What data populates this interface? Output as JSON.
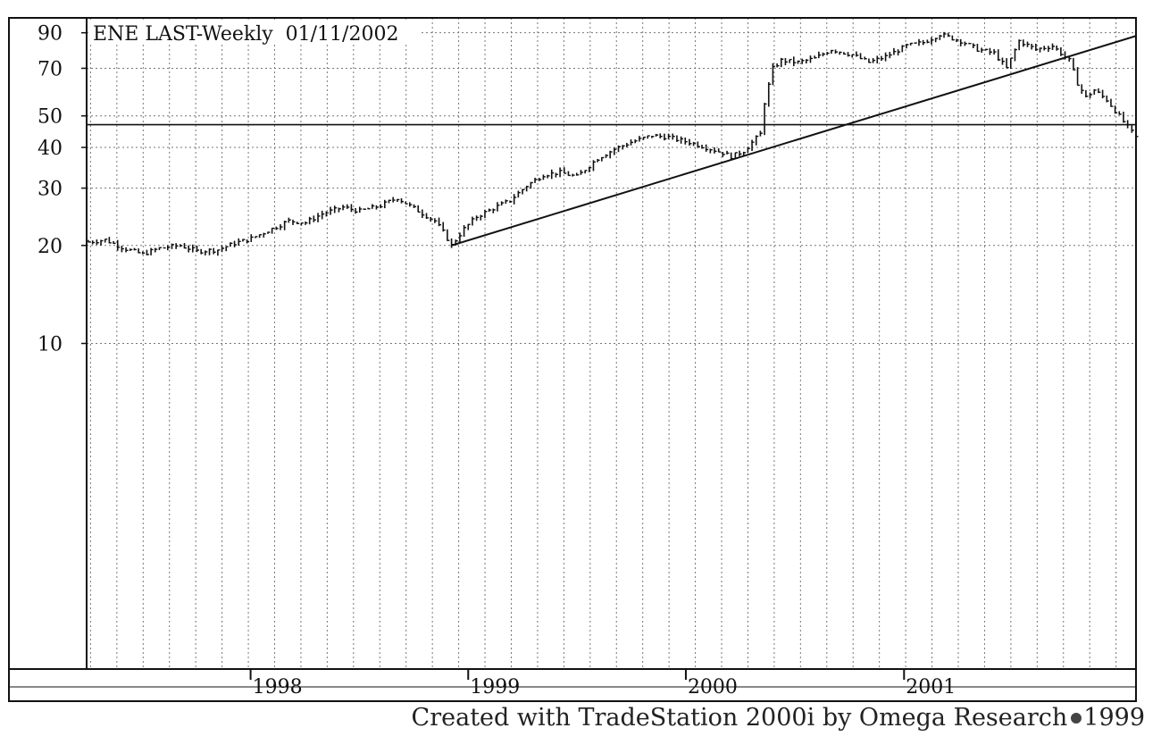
{
  "chart_data": {
    "type": "line",
    "style": "weekly OHLC bars",
    "title": "ENE LAST-Weekly  01/11/2002",
    "xlabel": "",
    "ylabel": "",
    "y_scale": "log",
    "ylim": [
      1,
      100
    ],
    "xlim": [
      "1997-04-01",
      "2002-01-25"
    ],
    "y_tick_labels": [
      "90",
      "70",
      "50",
      "40",
      "30",
      "20",
      "10"
    ],
    "y_ticks": [
      90,
      70,
      50,
      40,
      30,
      20,
      10
    ],
    "x_tick_labels": [
      "1998",
      "1999",
      "2000",
      "2001"
    ],
    "x_ticks": [
      "1998-01-01",
      "1999-01-01",
      "2000-01-01",
      "2001-01-01"
    ],
    "grid": true,
    "series": [
      {
        "style": "ohlc-weekly",
        "points": [
          [
            "1997-04-04",
            20.5
          ],
          [
            "1997-05-02",
            20.8
          ],
          [
            "1997-06-06",
            19.5
          ],
          [
            "1997-07-04",
            18.8
          ],
          [
            "1997-08-01",
            19.6
          ],
          [
            "1997-09-05",
            20.0
          ],
          [
            "1997-10-03",
            19.2
          ],
          [
            "1997-11-07",
            19.4
          ],
          [
            "1997-12-05",
            20.3
          ],
          [
            "1998-01-02",
            21.0
          ],
          [
            "1998-02-06",
            22.5
          ],
          [
            "1998-03-06",
            23.8
          ],
          [
            "1998-04-03",
            23.5
          ],
          [
            "1998-05-01",
            25.0
          ],
          [
            "1998-06-05",
            26.2
          ],
          [
            "1998-07-03",
            25.5
          ],
          [
            "1998-08-07",
            26.5
          ],
          [
            "1998-09-04",
            28.0
          ],
          [
            "1998-10-02",
            26.0
          ],
          [
            "1998-11-06",
            23.8
          ],
          [
            "1998-11-20",
            22.0
          ],
          [
            "1998-12-04",
            20.0
          ],
          [
            "1998-12-25",
            22.5
          ],
          [
            "1999-01-15",
            24.5
          ],
          [
            "1999-02-12",
            26.0
          ],
          [
            "1999-03-12",
            27.5
          ],
          [
            "1999-04-09",
            30.5
          ],
          [
            "1999-05-07",
            33.0
          ],
          [
            "1999-06-04",
            33.5
          ],
          [
            "1999-07-02",
            32.5
          ],
          [
            "1999-08-06",
            37.0
          ],
          [
            "1999-09-03",
            39.5
          ],
          [
            "1999-10-01",
            41.5
          ],
          [
            "1999-11-05",
            43.5
          ],
          [
            "1999-12-03",
            43.0
          ],
          [
            "1999-12-24",
            42.0
          ],
          [
            "2000-01-07",
            41.5
          ],
          [
            "2000-02-04",
            40.0
          ],
          [
            "2000-03-03",
            38.5
          ],
          [
            "2000-03-17",
            37.5
          ],
          [
            "2000-04-07",
            39.0
          ],
          [
            "2000-05-05",
            44.0
          ],
          [
            "2000-05-12",
            55.0
          ],
          [
            "2000-05-26",
            70.0
          ],
          [
            "2000-06-09",
            74.0
          ],
          [
            "2000-07-07",
            73.0
          ],
          [
            "2000-08-04",
            75.0
          ],
          [
            "2000-09-01",
            80.0
          ],
          [
            "2000-10-06",
            77.0
          ],
          [
            "2000-11-03",
            73.0
          ],
          [
            "2000-12-01",
            76.0
          ],
          [
            "2001-01-05",
            82.0
          ],
          [
            "2001-02-02",
            84.0
          ],
          [
            "2001-03-02",
            89.0
          ],
          [
            "2001-04-06",
            85.0
          ],
          [
            "2001-05-04",
            80.0
          ],
          [
            "2001-06-01",
            78.0
          ],
          [
            "2001-06-22",
            70.0
          ],
          [
            "2001-07-13",
            85.0
          ],
          [
            "2001-08-10",
            80.0
          ],
          [
            "2001-09-07",
            82.0
          ],
          [
            "2001-10-05",
            74.0
          ],
          [
            "2001-10-19",
            63.0
          ],
          [
            "2001-11-02",
            57.0
          ],
          [
            "2001-11-16",
            60.0
          ],
          [
            "2001-12-07",
            56.0
          ],
          [
            "2002-01-04",
            48.0
          ],
          [
            "2002-01-25",
            43.0
          ]
        ]
      }
    ],
    "horizontal_line": 47,
    "trend_line": [
      [
        "1998-12-04",
        20.0
      ],
      [
        "2002-01-25",
        88.0
      ]
    ]
  },
  "footer": {
    "text": "Created with TradeStation 2000i by Omega Research",
    "year": "1999"
  }
}
